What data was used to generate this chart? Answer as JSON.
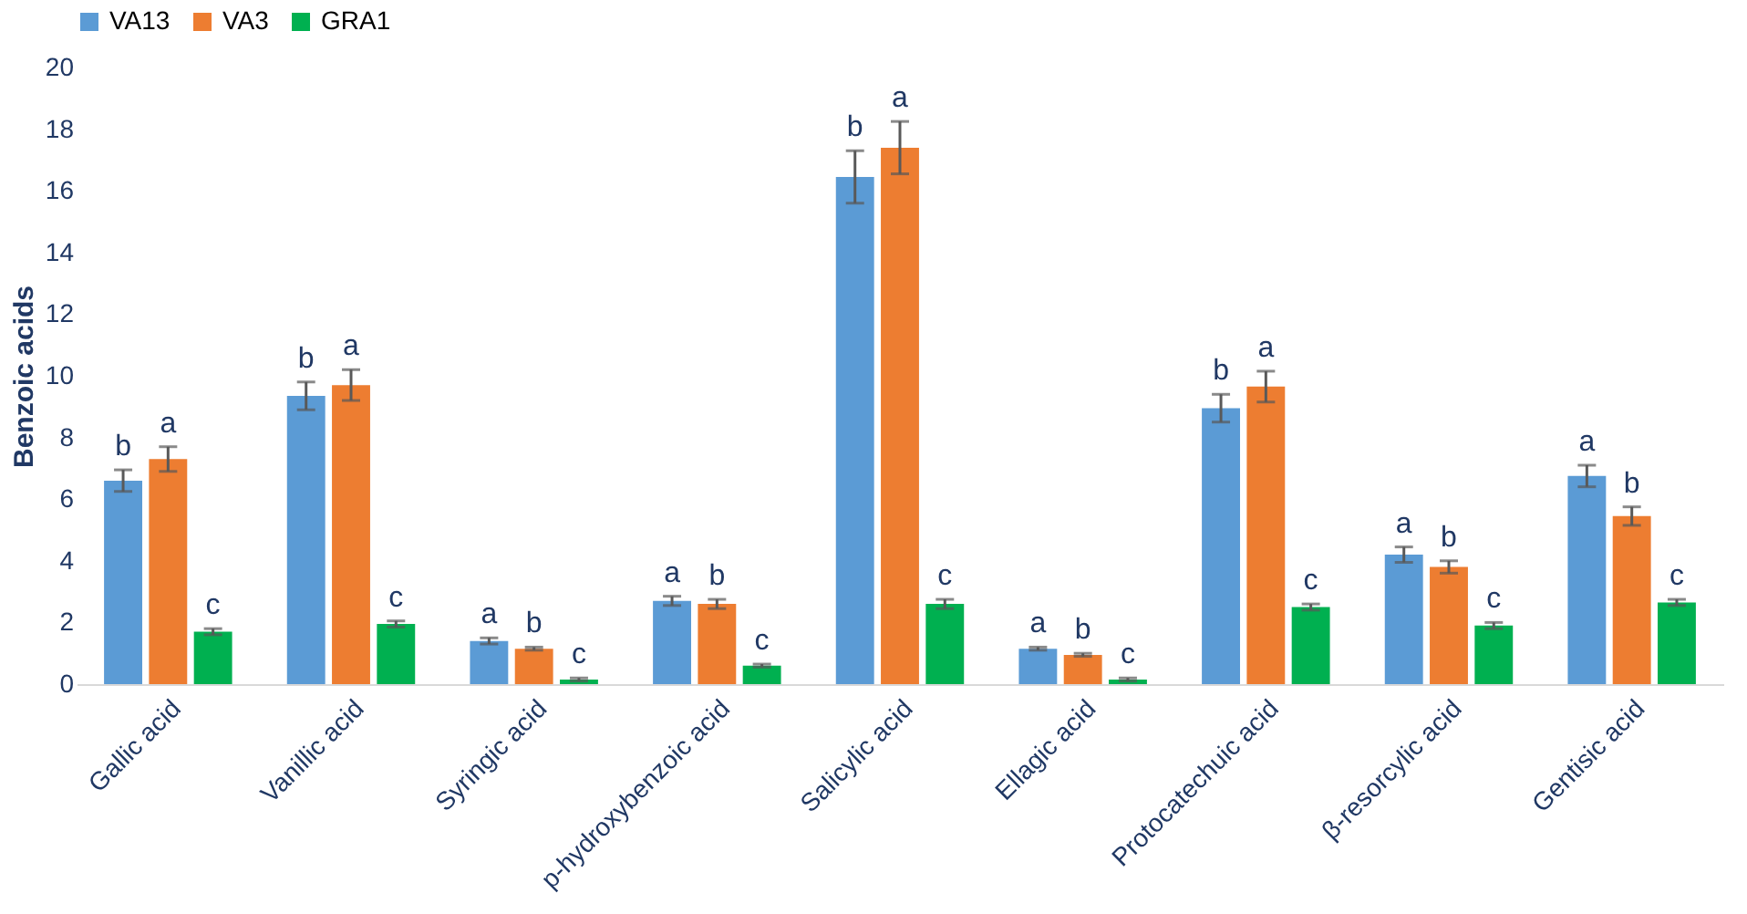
{
  "chart_data": {
    "type": "bar",
    "ylabel": "Benzoic acids",
    "categories": [
      "Gallic acid",
      "Vanillic acid",
      "Syringic acid",
      "p-hydroxybenzoic acid",
      "Salicylic acid",
      "Ellagic acid",
      "Protocatechuic acid",
      "β-resorcylic acid",
      "Gentisic acid"
    ],
    "series": [
      {
        "name": "VA13",
        "color": "#5b9bd5",
        "values": [
          6.6,
          9.35,
          1.4,
          2.7,
          16.45,
          1.15,
          8.95,
          4.2,
          6.75
        ],
        "errors": [
          0.35,
          0.45,
          0.1,
          0.15,
          0.85,
          0.05,
          0.45,
          0.25,
          0.35
        ],
        "value_labels": [
          "b",
          "b",
          "a",
          "a",
          "b",
          "a",
          "b",
          "a",
          "a"
        ]
      },
      {
        "name": "VA3",
        "color": "#ed7d31",
        "values": [
          7.3,
          9.7,
          1.15,
          2.6,
          17.4,
          0.95,
          9.65,
          3.8,
          5.45
        ],
        "errors": [
          0.4,
          0.5,
          0.05,
          0.15,
          0.85,
          0.05,
          0.5,
          0.2,
          0.3
        ],
        "value_labels": [
          "a",
          "a",
          "b",
          "b",
          "a",
          "b",
          "a",
          "b",
          "b"
        ]
      },
      {
        "name": "GRA1",
        "color": "#00b050",
        "values": [
          1.7,
          1.95,
          0.15,
          0.6,
          2.6,
          0.15,
          2.5,
          1.9,
          2.65
        ],
        "errors": [
          0.1,
          0.1,
          0.05,
          0.05,
          0.15,
          0.05,
          0.1,
          0.1,
          0.1
        ],
        "value_labels": [
          "c",
          "c",
          "c",
          "c",
          "c",
          "c",
          "c",
          "c",
          "c"
        ]
      }
    ],
    "ylim": [
      0,
      20
    ],
    "yticks": [
      0,
      2,
      4,
      6,
      8,
      10,
      12,
      14,
      16,
      18,
      20
    ],
    "grid": false,
    "legend": "top"
  }
}
